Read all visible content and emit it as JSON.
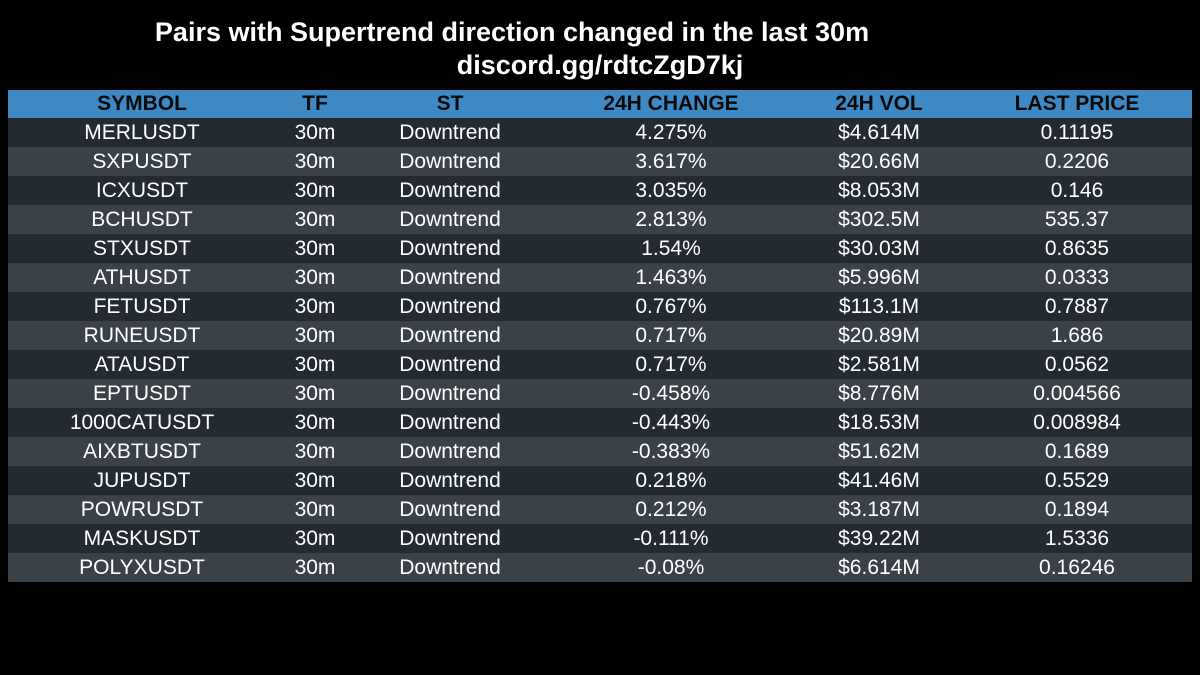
{
  "title": {
    "line1": "Pairs with Supertrend direction changed in the last 30m",
    "line2": "discord.gg/rdtcZgD7kj"
  },
  "colors": {
    "header_bg": "#3e89c4",
    "row_dark": "#232a31",
    "row_light": "#3a4148",
    "page_bg": "#000000"
  },
  "table": {
    "columns": [
      "SYMBOL",
      "TF",
      "ST",
      "24H CHANGE",
      "24H VOL",
      "LAST PRICE"
    ],
    "rows": [
      [
        "MERLUSDT",
        "30m",
        "Downtrend",
        "4.275%",
        "$4.614M",
        "0.11195"
      ],
      [
        "SXPUSDT",
        "30m",
        "Downtrend",
        "3.617%",
        "$20.66M",
        "0.2206"
      ],
      [
        "ICXUSDT",
        "30m",
        "Downtrend",
        "3.035%",
        "$8.053M",
        "0.146"
      ],
      [
        "BCHUSDT",
        "30m",
        "Downtrend",
        "2.813%",
        "$302.5M",
        "535.37"
      ],
      [
        "STXUSDT",
        "30m",
        "Downtrend",
        "1.54%",
        "$30.03M",
        "0.8635"
      ],
      [
        "ATHUSDT",
        "30m",
        "Downtrend",
        "1.463%",
        "$5.996M",
        "0.0333"
      ],
      [
        "FETUSDT",
        "30m",
        "Downtrend",
        "0.767%",
        "$113.1M",
        "0.7887"
      ],
      [
        "RUNEUSDT",
        "30m",
        "Downtrend",
        "0.717%",
        "$20.89M",
        "1.686"
      ],
      [
        "ATAUSDT",
        "30m",
        "Downtrend",
        "0.717%",
        "$2.581M",
        "0.0562"
      ],
      [
        "EPTUSDT",
        "30m",
        "Downtrend",
        "-0.458%",
        "$8.776M",
        "0.004566"
      ],
      [
        "1000CATUSDT",
        "30m",
        "Downtrend",
        "-0.443%",
        "$18.53M",
        "0.008984"
      ],
      [
        "AIXBTUSDT",
        "30m",
        "Downtrend",
        "-0.383%",
        "$51.62M",
        "0.1689"
      ],
      [
        "JUPUSDT",
        "30m",
        "Downtrend",
        "0.218%",
        "$41.46M",
        "0.5529"
      ],
      [
        "POWRUSDT",
        "30m",
        "Downtrend",
        "0.212%",
        "$3.187M",
        "0.1894"
      ],
      [
        "MASKUSDT",
        "30m",
        "Downtrend",
        "-0.111%",
        "$39.22M",
        "1.5336"
      ],
      [
        "POLYXUSDT",
        "30m",
        "Downtrend",
        "-0.08%",
        "$6.614M",
        "0.16246"
      ]
    ]
  }
}
